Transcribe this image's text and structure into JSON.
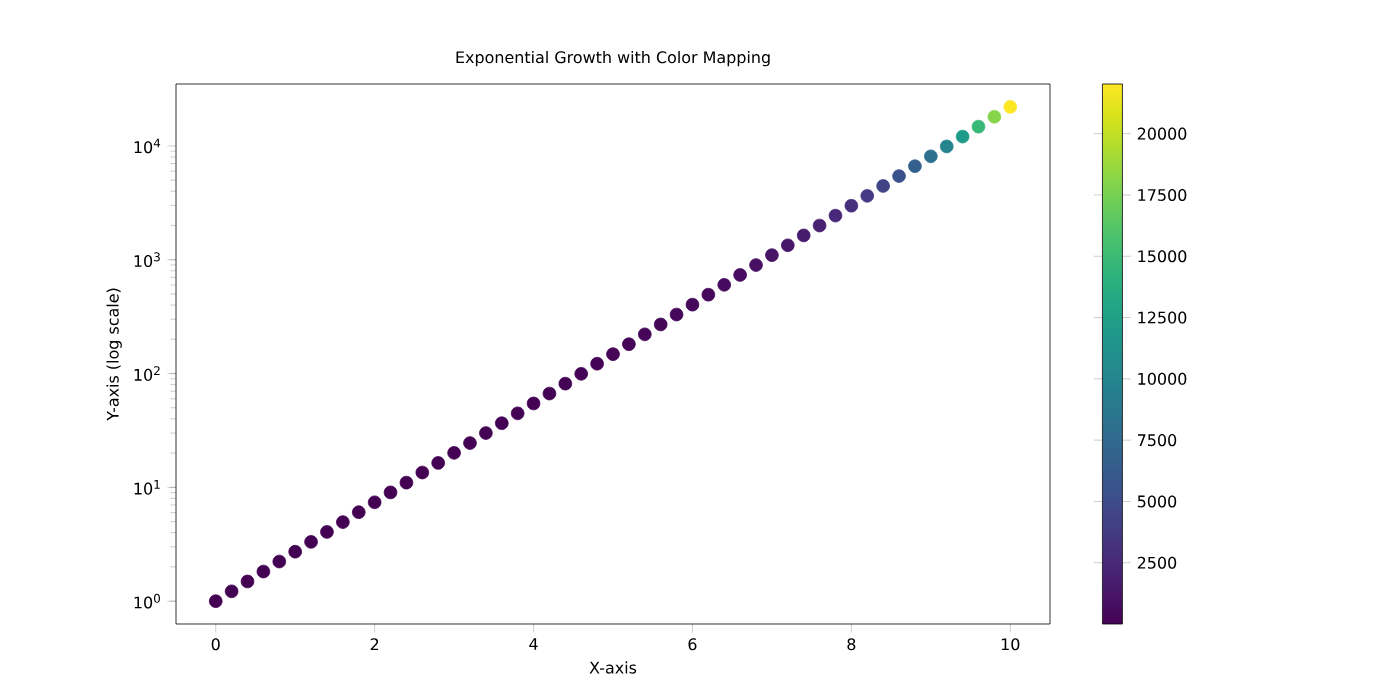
{
  "chart_data": {
    "type": "scatter",
    "title": "Exponential Growth with Color Mapping",
    "xlabel": "X-axis",
    "ylabel": "Y-axis (log scale)",
    "log": "y",
    "marker": "circle",
    "x": [
      0,
      0.2,
      0.4,
      0.6,
      0.8,
      1.0,
      1.2,
      1.4,
      1.6,
      1.8,
      2.0,
      2.2,
      2.4,
      2.6,
      2.8,
      3.0,
      3.2,
      3.4,
      3.6,
      3.8,
      4.0,
      4.2,
      4.4,
      4.6,
      4.8,
      5.0,
      5.2,
      5.4,
      5.6,
      5.8,
      6.0,
      6.2,
      6.4,
      6.6,
      6.8,
      7.0,
      7.2,
      7.4,
      7.6,
      7.8,
      8.0,
      8.2,
      8.4,
      8.6,
      8.8,
      9.0,
      9.2,
      9.4,
      9.6,
      9.8,
      10.0
    ],
    "values": [
      1,
      1.22,
      1.49,
      1.82,
      2.23,
      2.72,
      3.32,
      4.06,
      4.95,
      6.05,
      7.39,
      9.03,
      11.0,
      13.5,
      16.4,
      20.1,
      24.5,
      30.0,
      36.6,
      44.7,
      54.6,
      66.7,
      81.5,
      99.5,
      122,
      148,
      181,
      221,
      270,
      330,
      403,
      493,
      602,
      735,
      898,
      1097,
      1339,
      1636,
      1998,
      2441,
      2981,
      3641,
      4447,
      5432,
      6634,
      8103,
      9897,
      12088,
      14765,
      18034,
      22026
    ],
    "cvalues": [
      1,
      1.22,
      1.49,
      1.82,
      2.23,
      2.72,
      3.32,
      4.06,
      4.95,
      6.05,
      7.39,
      9.03,
      11.0,
      13.5,
      16.4,
      20.1,
      24.5,
      30.0,
      36.6,
      44.7,
      54.6,
      66.7,
      81.5,
      99.5,
      122,
      148,
      181,
      221,
      270,
      330,
      403,
      493,
      602,
      735,
      898,
      1097,
      1339,
      1636,
      1998,
      2441,
      2981,
      3641,
      4447,
      5432,
      6634,
      8103,
      9897,
      12088,
      14765,
      18034,
      22026
    ],
    "xlim": [
      -0.5,
      10.5
    ],
    "xticks": [
      0,
      2,
      4,
      6,
      8,
      10
    ],
    "ylim": [
      0.63,
      35000
    ],
    "yticks": [
      {
        "value": 1,
        "label": "10$^{0}$"
      },
      {
        "value": 10,
        "label": "10$^{1}$"
      },
      {
        "value": 100,
        "label": "10$^{2}$"
      },
      {
        "value": 1000,
        "label": "10$^{3}$"
      },
      {
        "value": 10000,
        "label": "10$^{4}$"
      }
    ],
    "clim": [
      1,
      22026
    ],
    "cticks": [
      2500,
      5000,
      7500,
      10000,
      12500,
      15000,
      17500,
      20000
    ]
  }
}
